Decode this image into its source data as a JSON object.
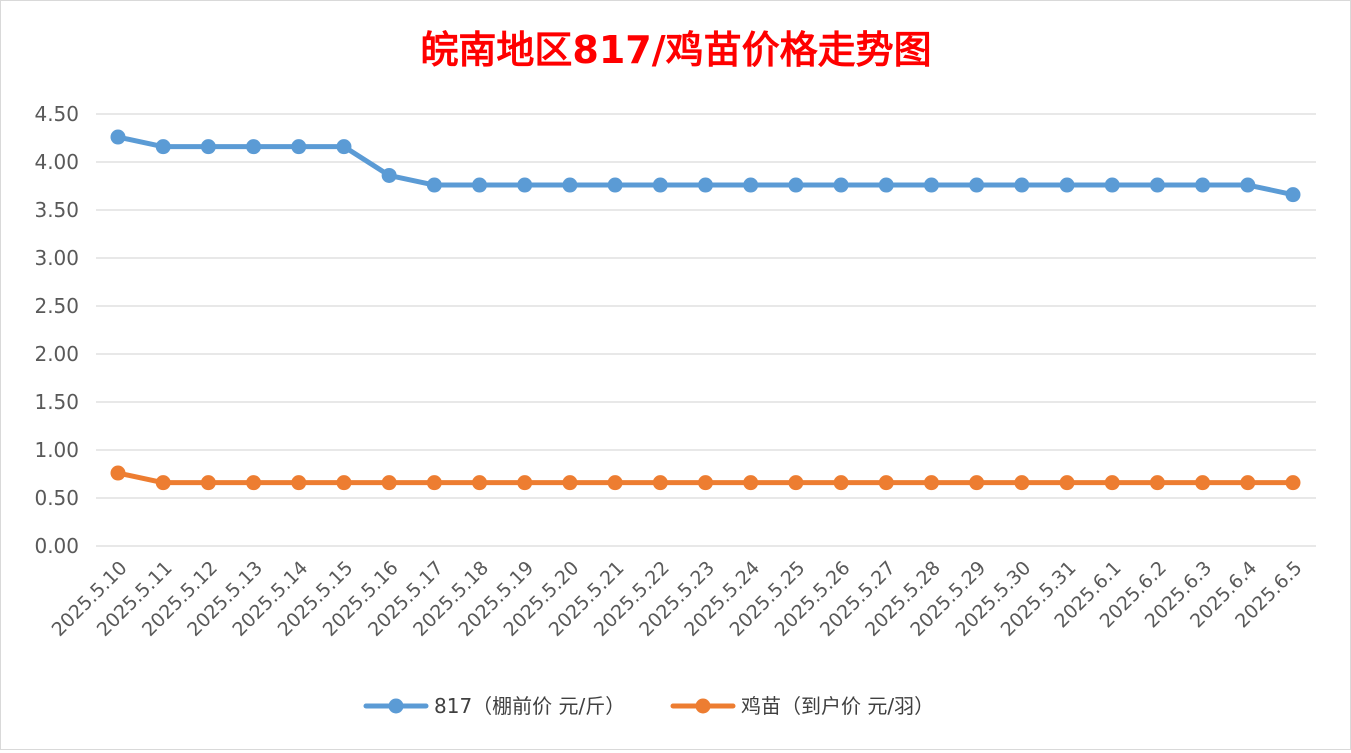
{
  "chart_data": {
    "type": "line",
    "title": "皖南地区817/鸡苗价格走势图",
    "xlabel": "",
    "ylabel": "",
    "ylim": [
      0,
      4.5
    ],
    "yticks": [
      "0.00",
      "0.50",
      "1.00",
      "1.50",
      "2.00",
      "2.50",
      "3.00",
      "3.50",
      "4.00",
      "4.50"
    ],
    "grid": true,
    "legend_position": "bottom",
    "x": [
      "2025.5.10",
      "2025.5.11",
      "2025.5.12",
      "2025.5.13",
      "2025.5.14",
      "2025.5.15",
      "2025.5.16",
      "2025.5.17",
      "2025.5.18",
      "2025.5.19",
      "2025.5.20",
      "2025.5.21",
      "2025.5.22",
      "2025.5.23",
      "2025.5.24",
      "2025.5.25",
      "2025.5.26",
      "2025.5.27",
      "2025.5.28",
      "2025.5.29",
      "2025.5.30",
      "2025.5.31",
      "2025.6.1",
      "2025.6.2",
      "2025.6.3",
      "2025.6.4",
      "2025.6.5"
    ],
    "series": [
      {
        "name": "817（棚前价 元/斤）",
        "color": "#5b9bd5",
        "values": [
          4.26,
          4.16,
          4.16,
          4.16,
          4.16,
          4.16,
          3.86,
          3.76,
          3.76,
          3.76,
          3.76,
          3.76,
          3.76,
          3.76,
          3.76,
          3.76,
          3.76,
          3.76,
          3.76,
          3.76,
          3.76,
          3.76,
          3.76,
          3.76,
          3.76,
          3.76,
          3.66
        ]
      },
      {
        "name": "鸡苗（到户价 元/羽）",
        "color": "#ed7d31",
        "values": [
          0.76,
          0.66,
          0.66,
          0.66,
          0.66,
          0.66,
          0.66,
          0.66,
          0.66,
          0.66,
          0.66,
          0.66,
          0.66,
          0.66,
          0.66,
          0.66,
          0.66,
          0.66,
          0.66,
          0.66,
          0.66,
          0.66,
          0.66,
          0.66,
          0.66,
          0.66,
          0.66
        ]
      }
    ]
  }
}
